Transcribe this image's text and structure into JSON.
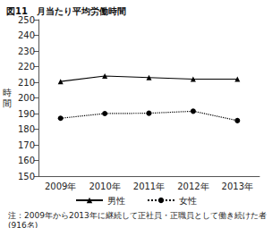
{
  "chart_data": {
    "type": "line",
    "title": "図11　月当たり平均労働時間",
    "y_label": "時間",
    "categories": [
      "2009年",
      "2010年",
      "2011年",
      "2012年",
      "2013年"
    ],
    "series": [
      {
        "name": "男性",
        "color": "#000000",
        "marker": "triangle",
        "line_style": "solid",
        "values": [
          210.5,
          214,
          213,
          212,
          212
        ]
      },
      {
        "name": "女性",
        "color": "#000000",
        "marker": "circle",
        "line_style": "dotted",
        "values": [
          187,
          190,
          190.2,
          191.5,
          185.5
        ]
      }
    ],
    "ylim": [
      150,
      250
    ],
    "yticks": [
      150,
      160,
      170,
      180,
      190,
      200,
      210,
      220,
      230,
      240,
      250
    ],
    "grid": false,
    "legend": "bottom",
    "note": "注：2009年から2013年に継続して正社員・正職員として働き続けた者(916名)"
  }
}
